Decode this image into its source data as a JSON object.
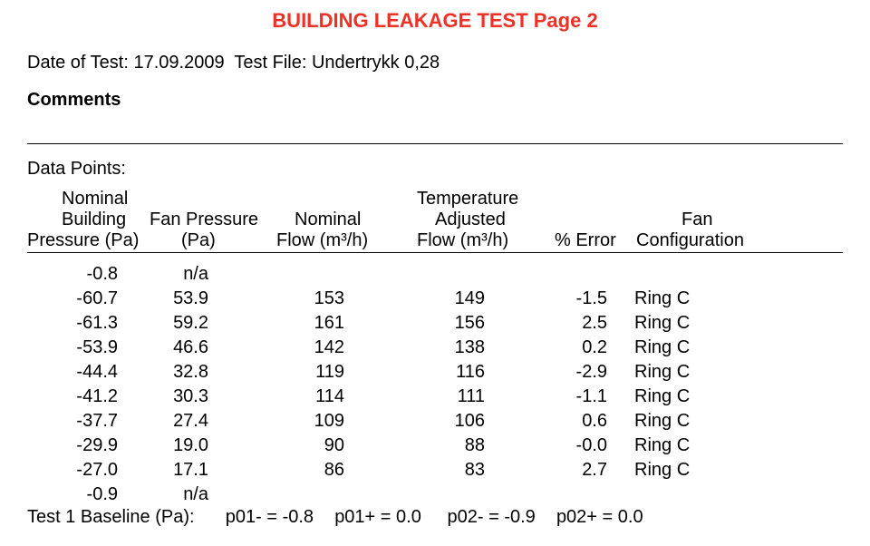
{
  "title": "BUILDING LEAKAGE TEST   Page 2",
  "title_color": "#ee3124",
  "meta": {
    "date_label": "Date of Test:",
    "date_value": "17.09.2009",
    "file_label": "Test File:",
    "file_value": "Undertrykk 0,28"
  },
  "comments_label": "Comments",
  "data_points_label": "Data Points:",
  "headers": {
    "h1a": "Nominal",
    "h1b": "Building",
    "h1c": "Pressure (Pa)",
    "h2a": "Fan Pressure",
    "h2b": "(Pa)",
    "h3a": "Nominal",
    "h3b": "Flow (m³/h)",
    "h4a": "Temperature",
    "h4b": "Adjusted",
    "h4c": "Flow (m³/h)",
    "h5": "% Error",
    "h6a": "Fan",
    "h6b": "Configuration"
  },
  "rows": [
    {
      "c1": "-0.8",
      "c2": "n/a",
      "c3": "",
      "c4": "",
      "c5": "",
      "c6": ""
    },
    {
      "c1": "-60.7",
      "c2": "53.9",
      "c3": "153",
      "c4": "149",
      "c5": "-1.5",
      "c6": "Ring C"
    },
    {
      "c1": "-61.3",
      "c2": "59.2",
      "c3": "161",
      "c4": "156",
      "c5": "2.5",
      "c6": "Ring C"
    },
    {
      "c1": "-53.9",
      "c2": "46.6",
      "c3": "142",
      "c4": "138",
      "c5": "0.2",
      "c6": "Ring C"
    },
    {
      "c1": "-44.4",
      "c2": "32.8",
      "c3": "119",
      "c4": "116",
      "c5": "-2.9",
      "c6": "Ring C"
    },
    {
      "c1": "-41.2",
      "c2": "30.3",
      "c3": "114",
      "c4": "111",
      "c5": "-1.1",
      "c6": "Ring C"
    },
    {
      "c1": "-37.7",
      "c2": "27.4",
      "c3": "109",
      "c4": "106",
      "c5": "0.6",
      "c6": "Ring C"
    },
    {
      "c1": "-29.9",
      "c2": "19.0",
      "c3": "90",
      "c4": "88",
      "c5": "-0.0",
      "c6": "Ring C"
    },
    {
      "c1": "-27.0",
      "c2": "17.1",
      "c3": "86",
      "c4": "83",
      "c5": "2.7",
      "c6": "Ring C"
    },
    {
      "c1": "-0.9",
      "c2": "n/a",
      "c3": "",
      "c4": "",
      "c5": "",
      "c6": ""
    }
  ],
  "baseline": {
    "prefix": "Test 1  Baseline (Pa):",
    "p01m": "p01- = -0.8",
    "p01p": "p01+ = 0.0",
    "p02m": "p02- = -0.9",
    "p02p": "p02+ = 0.0"
  }
}
